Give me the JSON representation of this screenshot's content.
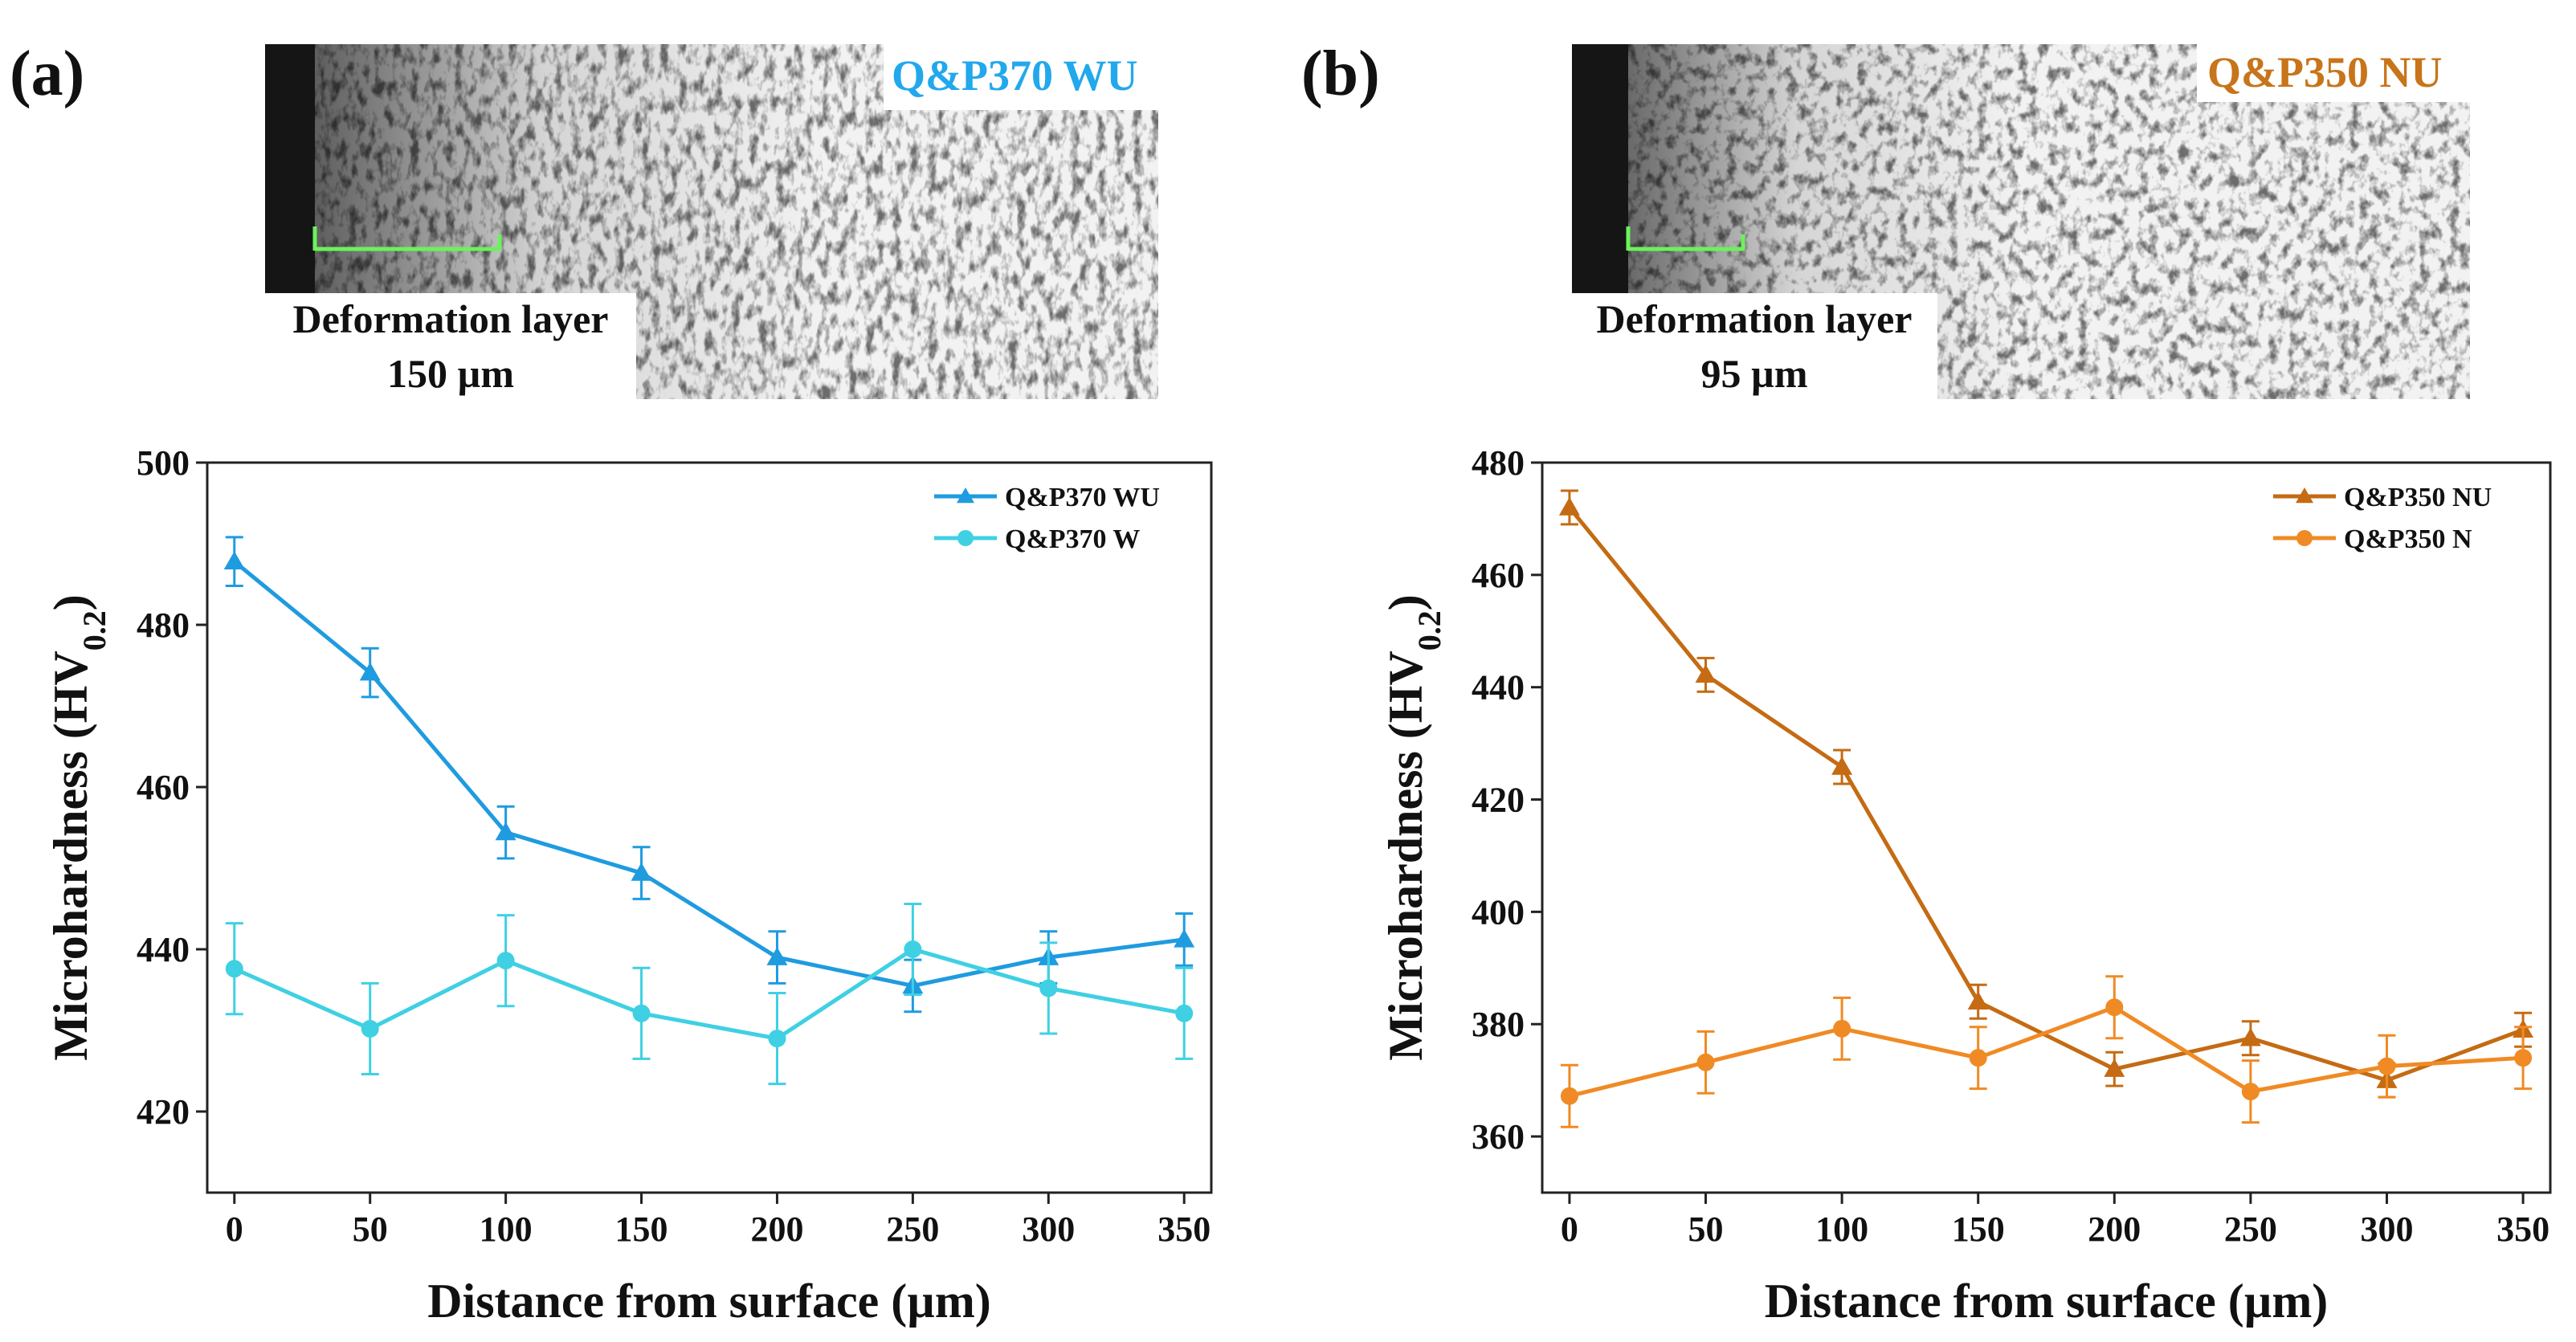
{
  "panels": [
    {
      "label": "(a)",
      "micrograph": {
        "sample_label": "Q&P370 WU",
        "layer_title": "Deformation layer",
        "layer_depth": "150 µm"
      }
    },
    {
      "label": "(b)",
      "micrograph": {
        "sample_label": "Q&P350 NU",
        "layer_title": "Deformation layer",
        "layer_depth": "95 µm"
      }
    }
  ],
  "chart_data": [
    {
      "type": "line",
      "xlabel": "Distance from surface (µm)",
      "ylabel_main": "Microhardness (HV",
      "ylabel_sub": "0.2",
      "ylabel_close": ")",
      "xlim": [
        -10,
        360
      ],
      "ylim": [
        410,
        500
      ],
      "xticks": [
        0,
        50,
        100,
        150,
        200,
        250,
        300,
        350
      ],
      "yticks": [
        420,
        440,
        460,
        480,
        500
      ],
      "legend_position": "top-right",
      "series": [
        {
          "name": "Q&P370 WU",
          "marker": "triangle",
          "color": "#1F9BE0",
          "x": [
            0,
            50,
            100,
            150,
            200,
            250,
            300,
            350
          ],
          "y": [
            487.8,
            474.1,
            454.4,
            449.4,
            439.0,
            435.5,
            439.0,
            441.2
          ],
          "err": [
            3.0,
            3.0,
            3.2,
            3.2,
            3.2,
            3.2,
            3.2,
            3.2
          ]
        },
        {
          "name": "Q&P370 W",
          "marker": "circle",
          "color": "#3FD0E3",
          "x": [
            0,
            50,
            100,
            150,
            200,
            250,
            300,
            350
          ],
          "y": [
            437.6,
            430.2,
            438.6,
            432.1,
            429.0,
            440.0,
            435.2,
            432.1
          ],
          "err": [
            5.6,
            5.6,
            5.6,
            5.6,
            5.6,
            5.6,
            5.6,
            5.6
          ]
        }
      ]
    },
    {
      "type": "line",
      "xlabel": "Distance from surface (µm)",
      "ylabel_main": "Microhardness (HV",
      "ylabel_sub": "0.2",
      "ylabel_close": ")",
      "xlim": [
        -10,
        360
      ],
      "ylim": [
        350,
        480
      ],
      "xticks": [
        0,
        50,
        100,
        150,
        200,
        250,
        300,
        350
      ],
      "yticks": [
        360,
        380,
        400,
        420,
        440,
        460,
        480
      ],
      "legend_position": "top-right",
      "series": [
        {
          "name": "Q&P350 NU",
          "marker": "triangle",
          "color": "#C46B13",
          "x": [
            0,
            50,
            100,
            150,
            200,
            250,
            300,
            350
          ],
          "y": [
            472.0,
            442.2,
            425.8,
            384.0,
            372.0,
            377.5,
            370.0,
            379.0
          ],
          "err": [
            3.0,
            3.0,
            3.0,
            3.0,
            3.0,
            3.0,
            3.0,
            3.0
          ]
        },
        {
          "name": "Q&P350 N",
          "marker": "circle",
          "color": "#F08A24",
          "x": [
            0,
            50,
            100,
            150,
            200,
            250,
            300,
            350
          ],
          "y": [
            367.2,
            373.2,
            379.2,
            374.0,
            383.0,
            368.0,
            372.5,
            374.0
          ],
          "err": [
            5.5,
            5.5,
            5.5,
            5.5,
            5.5,
            5.5,
            5.5,
            5.5
          ]
        }
      ]
    }
  ]
}
